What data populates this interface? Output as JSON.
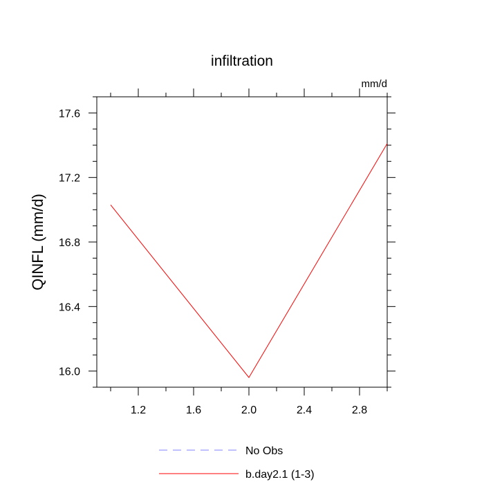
{
  "chart_data": {
    "type": "line",
    "title": "infiltration",
    "units_label": "mm/d",
    "xlabel": "",
    "ylabel": "QINFL  (mm/d)",
    "xlim": [
      0.9,
      3.0
    ],
    "ylim": [
      15.9,
      17.7
    ],
    "x_ticks": [
      1.2,
      1.6,
      2.0,
      2.4,
      2.8
    ],
    "x_tick_labels": [
      "1.2",
      "1.6",
      "2.0",
      "2.4",
      "2.8"
    ],
    "y_ticks": [
      16.0,
      16.4,
      16.8,
      17.2,
      17.6
    ],
    "y_tick_labels": [
      "16.0",
      "16.4",
      "16.8",
      "17.2",
      "17.6"
    ],
    "grid": false,
    "legend_position": "bottom-center",
    "series": [
      {
        "name": "No Obs",
        "color": "#8080ff",
        "dash": "dashed",
        "x": [],
        "y": []
      },
      {
        "name": "b.day2.1 (1-3)",
        "color": "#ff0000",
        "dash": "solid",
        "x": [
          1.0,
          2.0,
          3.0
        ],
        "y": [
          17.03,
          15.96,
          17.41
        ]
      }
    ]
  }
}
